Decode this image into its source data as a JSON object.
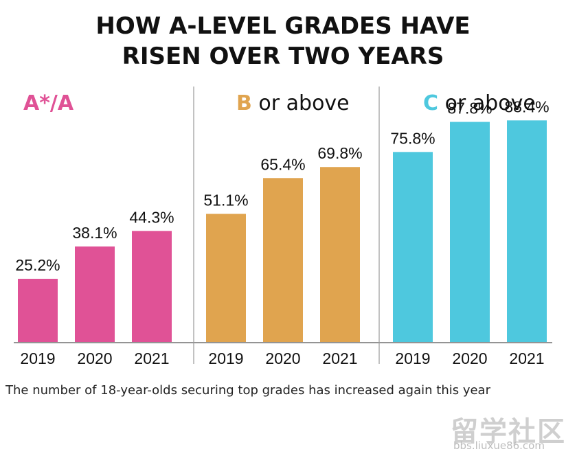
{
  "chart_data": {
    "type": "bar",
    "title_lines": [
      "HOW A-LEVEL GRADES HAVE",
      "RISEN OVER TWO YEARS"
    ],
    "caption": "The number of 18-year-olds securing top grades has increased again this year",
    "ylim": [
      0,
      100
    ],
    "panels": [
      {
        "title_key": "A*/A",
        "title_rest": "",
        "color": "#e05296",
        "categories": [
          "2019",
          "2020",
          "2021"
        ],
        "values": [
          25.2,
          38.1,
          44.3
        ],
        "labels": [
          "25.2%",
          "38.1%",
          "44.3%"
        ]
      },
      {
        "title_key": "B",
        "title_rest": " or above",
        "color": "#e0a44f",
        "categories": [
          "2019",
          "2020",
          "2021"
        ],
        "values": [
          51.1,
          65.4,
          69.8
        ],
        "labels": [
          "51.1%",
          "65.4%",
          "69.8%"
        ]
      },
      {
        "title_key": "C",
        "title_rest": " or above",
        "color": "#4ec8de",
        "categories": [
          "2019",
          "2020",
          "2021"
        ],
        "values": [
          75.8,
          87.8,
          88.4
        ],
        "labels": [
          "75.8%",
          "87.8%",
          "88.4%"
        ]
      }
    ]
  },
  "watermark": {
    "text": "留学社区",
    "url": "bbs.liuxue86.com"
  }
}
